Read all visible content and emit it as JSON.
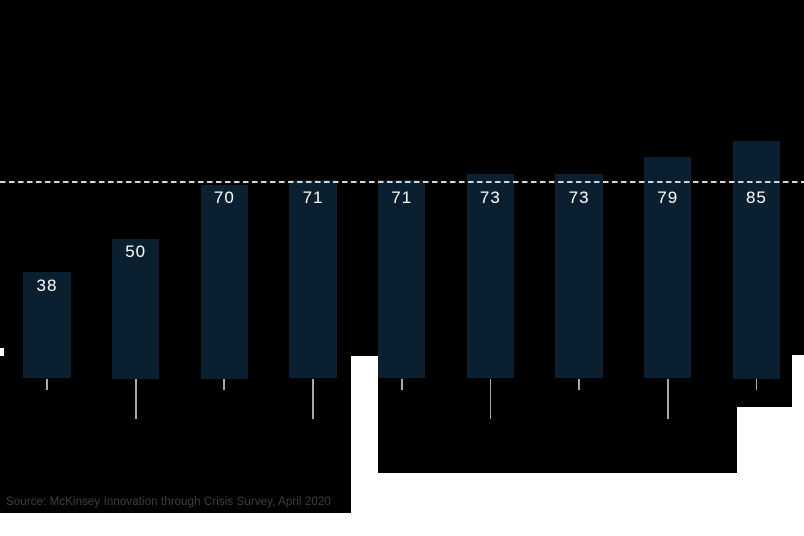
{
  "chart_data": {
    "type": "bar",
    "values": [
      38,
      50,
      70,
      71,
      71,
      73,
      73,
      79,
      85
    ],
    "value_labels": [
      "38",
      "50",
      "70",
      "71",
      "71",
      "73",
      "73",
      "79",
      "85"
    ],
    "benchmark_line": {
      "style": "dashed",
      "approx_value": 70,
      "orientation": "horizontal",
      "full_width": true
    },
    "leader_tick_pattern": [
      "short",
      "long",
      "short",
      "long",
      "short",
      "long",
      "short",
      "long",
      "short"
    ],
    "source": "Source: McKinsey Innovation through Crisis Survey, April 2020",
    "legend": "none",
    "gridlines": "none",
    "axis_tick_labels_visible": false
  },
  "colors": {
    "background": "#000000",
    "bar": "#0a2030",
    "value_label": "#ffffff",
    "dashed_line": "#d6d6d6",
    "leader_tick": "#a8a8a8",
    "source_text": "#3f3f3f",
    "artifact_white": "#ffffff"
  }
}
